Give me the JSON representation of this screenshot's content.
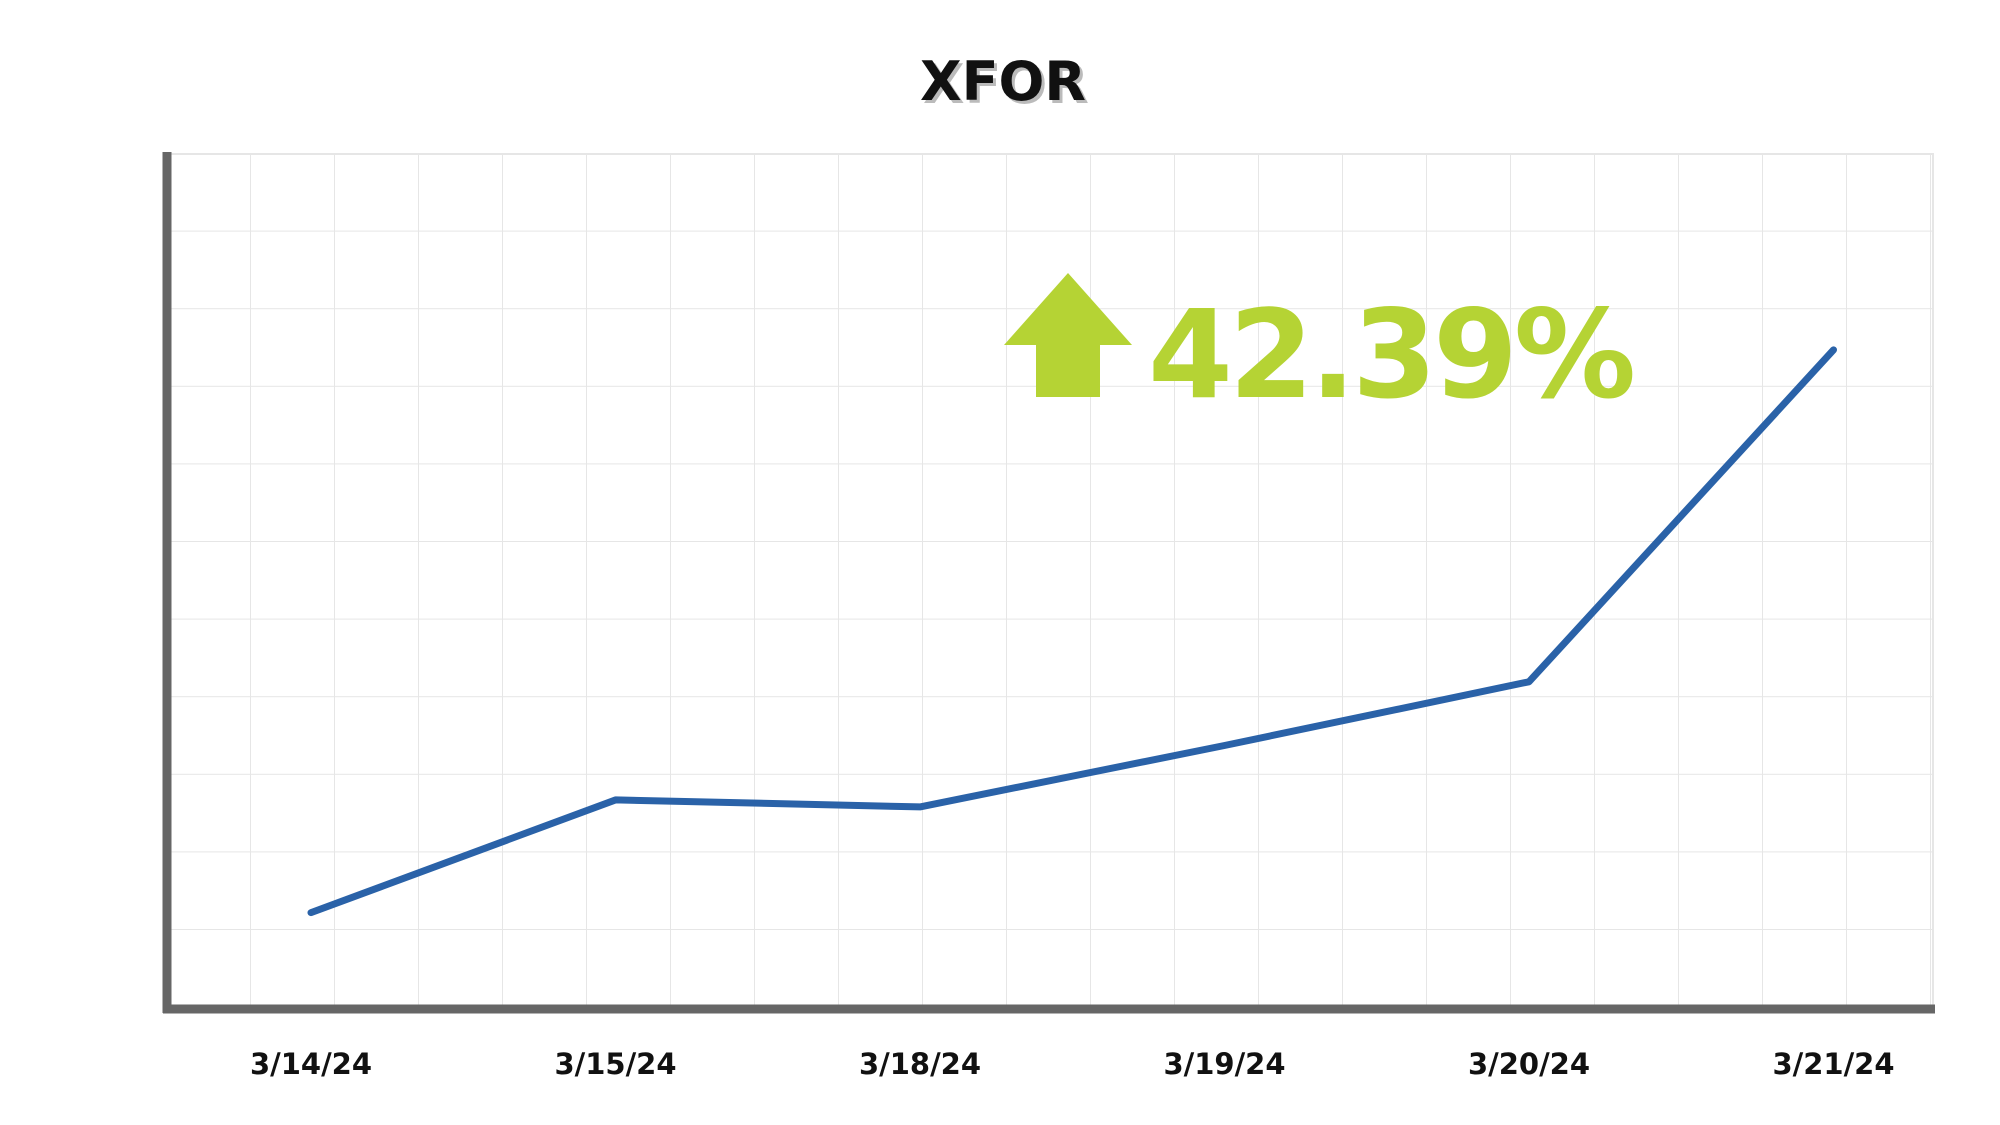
{
  "chart_data": {
    "type": "line",
    "title": "XFOR",
    "annotation": "42.39%",
    "categories": [
      "3/14/24",
      "3/15/24",
      "3/18/24",
      "3/19/24",
      "3/20/24",
      "3/21/24"
    ],
    "series": [
      {
        "color": "#2a62a8",
        "values": [
          1.24,
          2.69,
          2.6,
          3.39,
          4.21,
          8.48
        ]
      }
    ],
    "ylim": [
      0,
      11
    ],
    "grid": true,
    "annotation_color": "#b5d334"
  }
}
